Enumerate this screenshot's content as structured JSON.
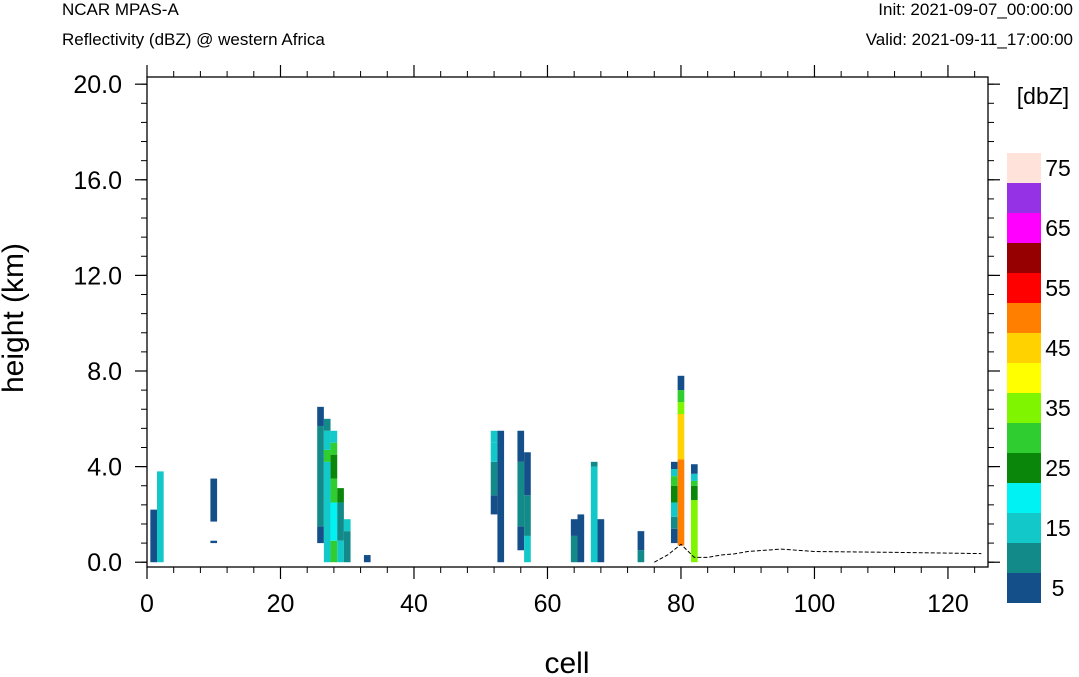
{
  "header": {
    "model": "NCAR MPAS-A",
    "subtitle": "Reflectivity (dBZ) @ western Africa",
    "init": "Init: 2021-09-07_00:00:00",
    "valid": "Valid: 2021-09-11_17:00:00"
  },
  "chart_data": {
    "type": "heatmap",
    "xlabel": "cell",
    "ylabel": "height (km)",
    "xlim": [
      0,
      126
    ],
    "ylim": [
      -0.2,
      20.3
    ],
    "xticks": [
      "0",
      "20",
      "40",
      "60",
      "80",
      "100",
      "120"
    ],
    "yticks": [
      "0.0",
      "4.0",
      "8.0",
      "12.0",
      "16.0",
      "20.0"
    ],
    "grid": false,
    "colorbar": {
      "units": "[dbZ]",
      "levels": [
        5,
        10,
        15,
        20,
        25,
        30,
        35,
        40,
        45,
        50,
        55,
        60,
        65,
        70,
        75
      ],
      "labels": [
        "5",
        "15",
        "25",
        "35",
        "45",
        "55",
        "65",
        "75"
      ],
      "colors": [
        "#154f8a",
        "#138a8a",
        "#12c8c8",
        "#00f2f2",
        "#0a860a",
        "#30cd30",
        "#80f500",
        "#ffff00",
        "#ffd200",
        "#ff8000",
        "#ff0000",
        "#960000",
        "#ff00ff",
        "#9632e6",
        "#ffe2da"
      ]
    },
    "columns": [
      {
        "x": 1,
        "segs": [
          [
            0,
            2.2,
            5
          ]
        ]
      },
      {
        "x": 2,
        "segs": [
          [
            0,
            3.8,
            15
          ]
        ]
      },
      {
        "x": 10,
        "segs": [
          [
            1.7,
            3.5,
            5
          ],
          [
            0.8,
            0.9,
            5
          ]
        ]
      },
      {
        "x": 26,
        "segs": [
          [
            0.8,
            1.5,
            5
          ],
          [
            1.5,
            5.7,
            10
          ],
          [
            5.7,
            6.5,
            5
          ]
        ]
      },
      {
        "x": 27,
        "segs": [
          [
            0,
            4.2,
            15
          ],
          [
            4.2,
            4.7,
            30
          ],
          [
            4.7,
            5.5,
            15
          ],
          [
            5.5,
            6.0,
            10
          ]
        ]
      },
      {
        "x": 28,
        "segs": [
          [
            0,
            0.9,
            30
          ],
          [
            0.9,
            2.5,
            20
          ],
          [
            2.5,
            3.5,
            30
          ],
          [
            3.5,
            4.5,
            25
          ],
          [
            4.5,
            5.0,
            30
          ],
          [
            5.0,
            5.5,
            15
          ]
        ]
      },
      {
        "x": 29,
        "segs": [
          [
            0,
            0.9,
            15
          ],
          [
            0.9,
            2.5,
            10
          ],
          [
            2.5,
            3.1,
            25
          ]
        ]
      },
      {
        "x": 30,
        "segs": [
          [
            0,
            1.3,
            10
          ],
          [
            1.3,
            1.8,
            15
          ]
        ]
      },
      {
        "x": 33,
        "segs": [
          [
            0,
            0.3,
            5
          ]
        ]
      },
      {
        "x": 52,
        "segs": [
          [
            2.0,
            2.8,
            5
          ],
          [
            2.8,
            4.2,
            10
          ],
          [
            4.2,
            5.0,
            15
          ],
          [
            5.0,
            5.5,
            15
          ]
        ]
      },
      {
        "x": 53,
        "segs": [
          [
            0,
            5.5,
            5
          ]
        ]
      },
      {
        "x": 56,
        "segs": [
          [
            0.5,
            1.5,
            5
          ],
          [
            1.5,
            4.2,
            10
          ],
          [
            4.2,
            5.5,
            5
          ]
        ]
      },
      {
        "x": 57,
        "segs": [
          [
            0,
            1.1,
            15
          ],
          [
            1.1,
            2.8,
            10
          ],
          [
            2.8,
            4.6,
            5
          ]
        ]
      },
      {
        "x": 64,
        "segs": [
          [
            0,
            1.1,
            10
          ],
          [
            1.1,
            1.8,
            5
          ]
        ]
      },
      {
        "x": 65,
        "segs": [
          [
            0,
            2.0,
            5
          ]
        ]
      },
      {
        "x": 67,
        "segs": [
          [
            0,
            4.0,
            15
          ],
          [
            4.0,
            4.2,
            10
          ]
        ]
      },
      {
        "x": 68,
        "segs": [
          [
            0,
            1.8,
            5
          ]
        ]
      },
      {
        "x": 74,
        "segs": [
          [
            0,
            0.5,
            10
          ],
          [
            0.5,
            1.3,
            5
          ]
        ]
      },
      {
        "x": 79,
        "segs": [
          [
            0.8,
            1.4,
            5
          ],
          [
            1.4,
            1.9,
            10
          ],
          [
            1.9,
            2.5,
            15
          ],
          [
            2.5,
            3.2,
            25
          ],
          [
            3.2,
            3.6,
            30
          ],
          [
            3.6,
            3.9,
            15
          ],
          [
            3.9,
            4.2,
            5
          ]
        ]
      },
      {
        "x": 80,
        "segs": [
          [
            0.7,
            4.3,
            50
          ],
          [
            4.3,
            6.2,
            45
          ],
          [
            6.2,
            6.7,
            35
          ],
          [
            6.7,
            7.2,
            30
          ],
          [
            7.2,
            7.8,
            5
          ]
        ]
      },
      {
        "x": 82,
        "segs": [
          [
            0,
            2.6,
            35
          ],
          [
            2.6,
            3.2,
            25
          ],
          [
            3.2,
            3.4,
            30
          ],
          [
            3.4,
            3.7,
            15
          ],
          [
            3.7,
            4.1,
            5
          ]
        ]
      }
    ],
    "terrain": [
      [
        76,
        0.0
      ],
      [
        78,
        0.3
      ],
      [
        80,
        0.75
      ],
      [
        82,
        0.2
      ],
      [
        84,
        0.2
      ],
      [
        86,
        0.3
      ],
      [
        88,
        0.35
      ],
      [
        90,
        0.45
      ],
      [
        95,
        0.55
      ],
      [
        100,
        0.45
      ],
      [
        110,
        0.42
      ],
      [
        120,
        0.38
      ],
      [
        125,
        0.36
      ]
    ]
  }
}
